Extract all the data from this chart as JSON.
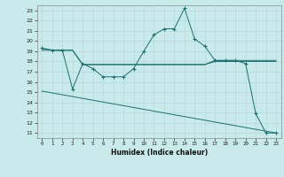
{
  "xlabel": "Humidex (Indice chaleur)",
  "background_color": "#c8eaea",
  "grid_color": "#aacccc",
  "line_color": "#1a7070",
  "xlim": [
    -0.5,
    23.5
  ],
  "ylim": [
    10.5,
    23.5
  ],
  "yticks": [
    11,
    12,
    13,
    14,
    15,
    16,
    17,
    18,
    19,
    20,
    21,
    22,
    23
  ],
  "xticks": [
    0,
    1,
    2,
    3,
    4,
    5,
    6,
    7,
    8,
    9,
    10,
    11,
    12,
    13,
    14,
    15,
    16,
    17,
    18,
    19,
    20,
    21,
    22,
    23
  ],
  "series": [
    {
      "x": [
        0,
        1,
        2,
        3,
        4,
        5,
        6,
        7,
        8,
        9,
        10,
        11,
        12,
        13,
        14,
        15,
        16,
        17,
        18,
        19,
        20,
        21,
        22,
        23
      ],
      "y": [
        19.3,
        19.1,
        19.1,
        15.3,
        17.8,
        17.3,
        16.5,
        16.5,
        16.5,
        17.3,
        19.0,
        20.6,
        21.2,
        21.2,
        23.2,
        20.2,
        19.5,
        18.1,
        18.1,
        18.1,
        17.8,
        12.9,
        11.0,
        11.0
      ],
      "marker": true,
      "markersize": 2.5
    },
    {
      "x": [
        0,
        1,
        2,
        3,
        4,
        5,
        6,
        7,
        8,
        9,
        10,
        11,
        12,
        13,
        14,
        15,
        16,
        17,
        18,
        19,
        20,
        21,
        22,
        23
      ],
      "y": [
        19.1,
        19.1,
        19.1,
        19.1,
        17.7,
        17.7,
        17.7,
        17.7,
        17.7,
        17.7,
        17.7,
        17.7,
        17.7,
        17.7,
        17.7,
        17.7,
        17.7,
        18.0,
        18.0,
        18.0,
        18.0,
        18.0,
        18.0,
        18.0
      ],
      "marker": false,
      "markersize": 0
    },
    {
      "x": [
        0,
        1,
        2,
        3,
        4,
        5,
        6,
        7,
        8,
        9,
        10,
        11,
        12,
        13,
        14,
        15,
        16,
        17,
        18,
        19,
        20,
        21,
        22,
        23
      ],
      "y": [
        19.3,
        19.1,
        19.1,
        19.1,
        17.7,
        17.7,
        17.7,
        17.7,
        17.7,
        17.7,
        17.7,
        17.7,
        17.7,
        17.7,
        17.7,
        17.7,
        17.7,
        18.1,
        18.1,
        18.1,
        18.1,
        18.1,
        18.1,
        18.1
      ],
      "marker": false,
      "markersize": 0
    },
    {
      "x": [
        0,
        23
      ],
      "y": [
        15.1,
        11.0
      ],
      "marker": false,
      "markersize": 0
    }
  ]
}
